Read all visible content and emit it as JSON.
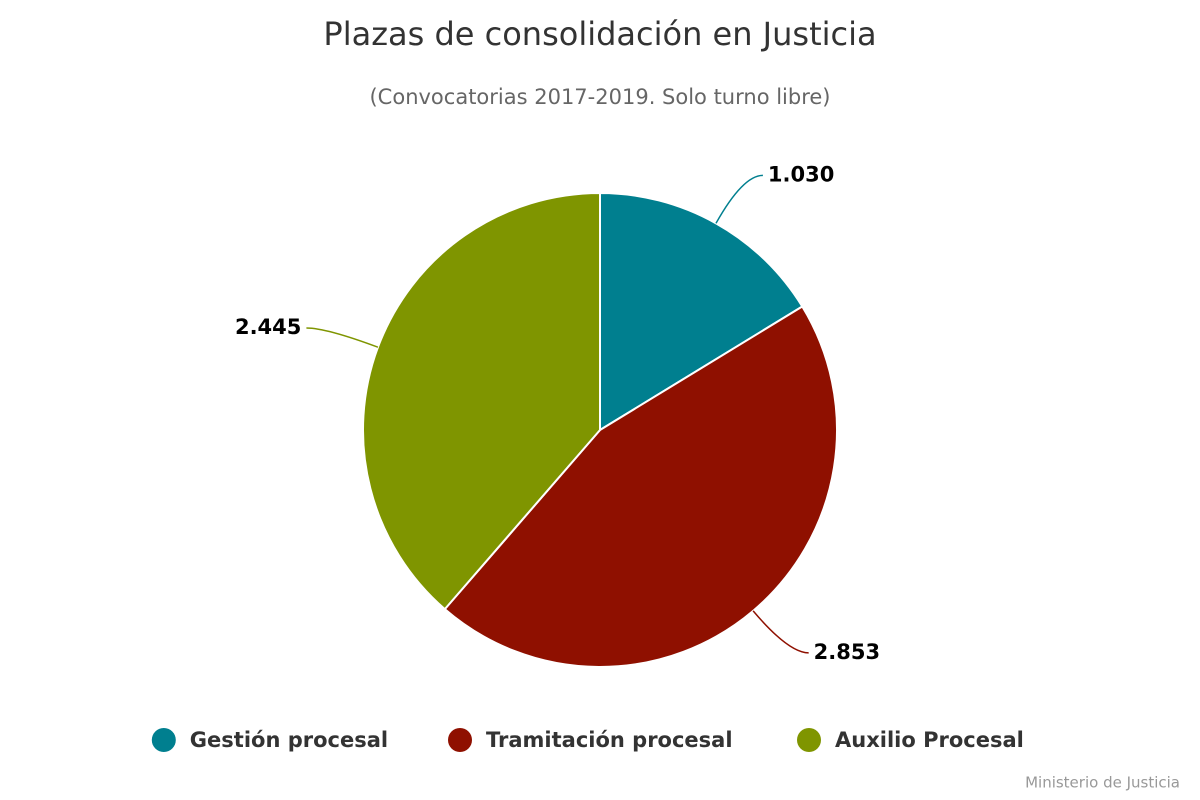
{
  "chart_data": {
    "type": "pie",
    "title": "Plazas de consolidación en Justicia",
    "subtitle": "(Convocatorias 2017-2019. Solo turno libre)",
    "categories": [
      "Gestión procesal",
      "Tramitación procesal",
      "Auxilio Procesal"
    ],
    "values": [
      1030,
      2853,
      2445
    ],
    "value_labels": [
      "1.030",
      "2.853",
      "2.445"
    ],
    "colors": [
      "#007f8f",
      "#8f1000",
      "#7f9500"
    ],
    "credits": "Ministerio de Justicia"
  }
}
